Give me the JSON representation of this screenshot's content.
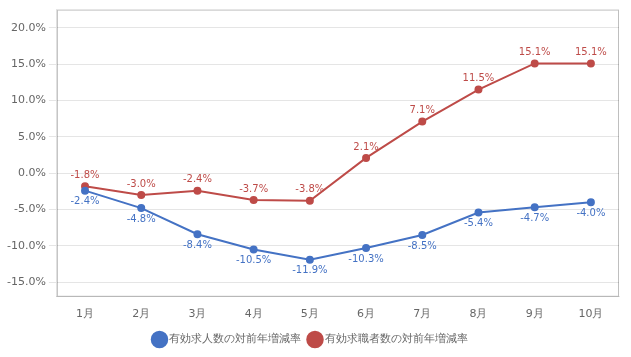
{
  "chart_data": {
    "type": "line",
    "categories": [
      "1月",
      "2月",
      "3月",
      "4月",
      "5月",
      "6月",
      "7月",
      "8月",
      "9月",
      "10月"
    ],
    "series": [
      {
        "name": "有効求人数の対前年増減率",
        "color": "#4472C4",
        "marker": "circle",
        "values": [
          -2.4,
          -4.8,
          -8.4,
          -10.5,
          -11.9,
          -10.3,
          -8.5,
          -5.4,
          -4.7,
          -4.0
        ],
        "value_labels": [
          "-2.4%",
          "-4.8%",
          "-8.4%",
          "-10.5%",
          "-11.9%",
          "-10.3%",
          "-8.5%",
          "-5.4%",
          "-4.7%",
          "-4.0%"
        ]
      },
      {
        "name": "有効求職者数の対前年増減率",
        "color": "#BE4B48",
        "marker": "circle",
        "values": [
          -1.8,
          -3.0,
          -2.4,
          -3.7,
          -3.8,
          2.1,
          7.1,
          11.5,
          15.1,
          15.1
        ],
        "value_labels": [
          "-1.8%",
          "-3.0%",
          "-2.4%",
          "-3.7%",
          "-3.8%",
          "2.1%",
          "7.1%",
          "11.5%",
          "15.1%",
          "15.1%"
        ]
      }
    ],
    "ylim": [
      -17.0,
      22.5
    ],
    "yticks": [
      {
        "value": -15.0,
        "label": "-15.0%"
      },
      {
        "value": -10.0,
        "label": "-10.0%"
      },
      {
        "value": -5.0,
        "label": "-5.0%"
      },
      {
        "value": 0.0,
        "label": "0.0%"
      },
      {
        "value": 5.0,
        "label": "5.0%"
      },
      {
        "value": 10.0,
        "label": "10.0%"
      },
      {
        "value": 15.0,
        "label": "15.0%"
      },
      {
        "value": 20.0,
        "label": "20.0%"
      }
    ],
    "grid": true,
    "legend": "bottom",
    "data_labels": true
  }
}
